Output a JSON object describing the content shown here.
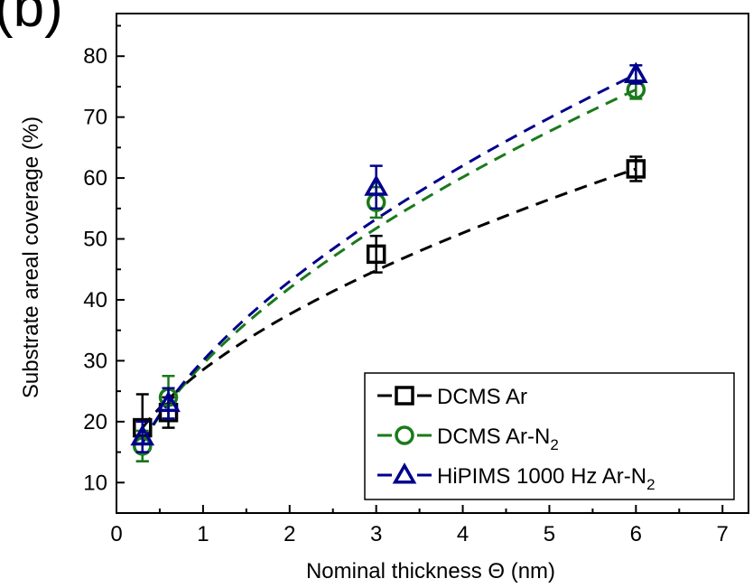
{
  "panel_label": "(b)",
  "chart_data": {
    "type": "scatter",
    "title": "",
    "xlabel": "Nominal thickness Θ (nm)",
    "ylabel": "Substrate areal coverage (%)",
    "xlim": [
      0,
      7.3
    ],
    "ylim": [
      5,
      87
    ],
    "xticks": [
      0,
      1,
      2,
      3,
      4,
      5,
      6,
      7
    ],
    "yticks": [
      10,
      20,
      30,
      40,
      50,
      60,
      70,
      80
    ],
    "grid": false,
    "legend_position": "bottom-right",
    "series": [
      {
        "name": "DCMS Ar",
        "name_main": "DCMS Ar",
        "name_sub": "",
        "marker": "square",
        "color": "#000000",
        "x": [
          0.3,
          0.6,
          3.0,
          6.0
        ],
        "y": [
          19.0,
          21.5,
          47.5,
          61.5
        ],
        "yerr": [
          5.5,
          2.5,
          3.0,
          2.0
        ],
        "fit_x": [
          0.3,
          6.0
        ],
        "fit_y": [
          19.0,
          61.5
        ]
      },
      {
        "name": "DCMS Ar-N2",
        "name_main": "DCMS Ar-N",
        "name_sub": "2",
        "marker": "circle",
        "color": "#1a7a1a",
        "x": [
          0.3,
          0.6,
          3.0,
          6.0
        ],
        "y": [
          16.0,
          24.0,
          56.0,
          74.5
        ],
        "yerr": [
          2.5,
          3.5,
          2.5,
          1.5
        ],
        "fit_x": [
          0.3,
          6.0
        ],
        "fit_y": [
          16.5,
          74.5
        ]
      },
      {
        "name": "HiPIMS 1000 Hz Ar-N2",
        "name_main": "HiPIMS 1000 Hz Ar-N",
        "name_sub": "2",
        "marker": "triangle",
        "color": "#00008b",
        "x": [
          0.3,
          0.6,
          3.0,
          6.0
        ],
        "y": [
          17.5,
          23.0,
          58.5,
          77.0
        ],
        "yerr": [
          2.5,
          2.5,
          3.5,
          1.5
        ],
        "fit_x": [
          0.3,
          6.0
        ],
        "fit_y": [
          16.5,
          77.0
        ]
      }
    ]
  }
}
